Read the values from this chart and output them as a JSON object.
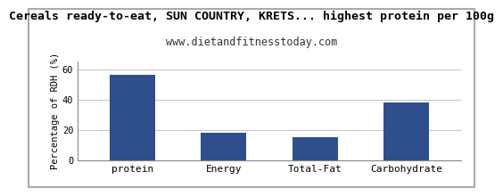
{
  "title": "Cereals ready-to-eat, SUN COUNTRY, KRETS... highest protein per 100g",
  "subtitle": "www.dietandfitnesstoday.com",
  "categories": [
    "protein",
    "Energy",
    "Total-Fat",
    "Carbohydrate"
  ],
  "values": [
    56,
    18,
    15,
    38
  ],
  "bar_color": "#2e4f8c",
  "ylabel": "Percentage of RDH (%)",
  "ylim": [
    0,
    65
  ],
  "yticks": [
    0,
    20,
    40,
    60
  ],
  "title_fontsize": 9.5,
  "subtitle_fontsize": 8.5,
  "ylabel_fontsize": 7.5,
  "xlabel_fontsize": 8,
  "tick_fontsize": 7.5,
  "background_color": "#ffffff",
  "plot_bg_color": "#ffffff",
  "grid_color": "#c8c8c8",
  "border_color": "#888888",
  "fig_border_color": "#aaaaaa"
}
